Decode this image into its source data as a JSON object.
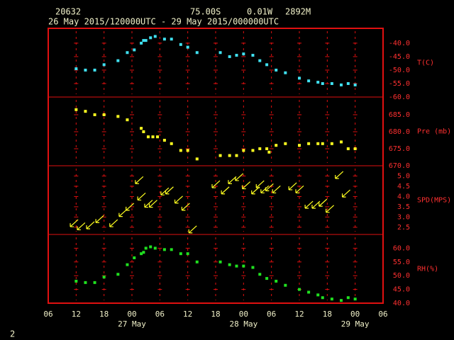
{
  "header": {
    "station": "20632",
    "lat": "75.00S",
    "lon": "0.01W",
    "elev": "2892M",
    "period": "26 May 2015/120000UTC - 29 May 2015/000000UTC",
    "footer": "2"
  },
  "chart_data": [
    {
      "type": "scatter",
      "ylabel": "T(C)",
      "color": "#40e0f0",
      "x": [
        12,
        14,
        16,
        18,
        21,
        23,
        24.5,
        26,
        26.5,
        27,
        28,
        29,
        31,
        32.5,
        34.5,
        36,
        38,
        43,
        45,
        46.5,
        48,
        50,
        51.5,
        53,
        55,
        57,
        60,
        62,
        64,
        65,
        67,
        69,
        70.5,
        72
      ],
      "values": [
        -49.5,
        -50,
        -50,
        -48,
        -46.5,
        -43.5,
        -42.5,
        -40,
        -39,
        -39,
        -38,
        -37.5,
        -38.5,
        -38.5,
        -40.5,
        -41.5,
        -43.5,
        -43.5,
        -45,
        -44.5,
        -44,
        -44.5,
        -46.5,
        -48,
        -50,
        -51,
        -53,
        -54,
        -54.5,
        -55,
        -55,
        -55.5,
        -55,
        -55.5
      ],
      "ylim": [
        -60,
        -34.5
      ],
      "yticks": [
        {
          "value": -40,
          "label": "-40.0"
        },
        {
          "value": -45,
          "label": "-45.0"
        },
        {
          "value": -50,
          "label": "-50.0"
        },
        {
          "value": -55,
          "label": "-55.0"
        },
        {
          "value": -60,
          "label": "-60.0"
        }
      ]
    },
    {
      "type": "scatter",
      "ylabel": "Pre (mb)",
      "color": "#ffff20",
      "x": [
        12,
        14,
        16,
        18,
        21,
        23,
        26,
        26.5,
        27.5,
        28.5,
        29.5,
        31,
        32.5,
        34.5,
        36,
        38,
        43,
        45,
        46.5,
        48,
        50,
        51.5,
        53,
        53.5,
        55,
        57,
        60,
        62,
        64,
        65,
        67,
        69,
        70.5,
        72
      ],
      "values": [
        686.5,
        686,
        685,
        685,
        684.5,
        683.5,
        681,
        680,
        678.5,
        678.5,
        678.5,
        677.5,
        676.5,
        674.5,
        674.5,
        672,
        673,
        673,
        673,
        674.5,
        674.5,
        675,
        675,
        674,
        676,
        676.5,
        676,
        676.5,
        676.5,
        676.5,
        676.5,
        677,
        675,
        675
      ],
      "ylim": [
        670,
        690.2
      ],
      "yticks": [
        {
          "value": 685,
          "label": "685.0"
        },
        {
          "value": 680,
          "label": "680.0"
        },
        {
          "value": 675,
          "label": "675.0"
        },
        {
          "value": 670,
          "label": "670.0"
        }
      ]
    },
    {
      "type": "vector",
      "ylabel": "SPD(MPS)",
      "color": "#ffff20",
      "x": [
        11.5,
        13,
        15,
        17,
        20,
        22,
        23.5,
        25.5,
        26,
        27.5,
        28.5,
        31,
        32,
        34,
        35.5,
        37,
        42,
        44,
        45.5,
        47,
        48.5,
        50.5,
        51.5,
        52.5,
        53.5,
        55,
        58.5,
        60,
        62,
        63.5,
        65,
        66.5,
        68.5,
        70
      ],
      "values": [
        2.7,
        2.55,
        2.6,
        2.9,
        2.7,
        3.2,
        3.5,
        4.8,
        4.0,
        3.65,
        3.65,
        4.25,
        4.3,
        3.85,
        3.5,
        2.4,
        4.6,
        4.3,
        4.8,
        4.95,
        4.55,
        4.3,
        4.6,
        4.35,
        4.45,
        4.35,
        4.5,
        4.35,
        3.6,
        3.6,
        3.7,
        3.4,
        5.05,
        4.15
      ],
      "ylim": [
        2.15,
        5.5
      ],
      "yticks": [
        {
          "value": 5,
          "label": "5.0"
        },
        {
          "value": 4.5,
          "label": "4.5"
        },
        {
          "value": 4,
          "label": "4.0"
        },
        {
          "value": 3.5,
          "label": "3.5"
        },
        {
          "value": 3,
          "label": "3.0"
        },
        {
          "value": 2.5,
          "label": "2.5"
        }
      ]
    },
    {
      "type": "scatter",
      "ylabel": "RH(%)",
      "color": "#20e020",
      "x": [
        12,
        14,
        16,
        18,
        21,
        23,
        24.5,
        26,
        26.5,
        27,
        28,
        29,
        31,
        32.5,
        34.5,
        36,
        38,
        43,
        45,
        46.5,
        48,
        50,
        51.5,
        53,
        55,
        57,
        60,
        62,
        64,
        65,
        67,
        69,
        70.5,
        72
      ],
      "values": [
        48,
        47.5,
        47.5,
        49.5,
        50.5,
        54,
        56.5,
        58,
        58.5,
        60,
        60.5,
        60,
        59.5,
        59.5,
        58,
        58,
        55,
        55,
        54,
        53.5,
        53.5,
        53,
        50.5,
        49,
        48,
        46.5,
        45,
        44,
        43,
        42,
        41.5,
        41,
        42,
        41.5
      ],
      "ylim": [
        40,
        65
      ],
      "yticks": [
        {
          "value": 60,
          "label": "60.0"
        },
        {
          "value": 55,
          "label": "55.0"
        },
        {
          "value": 50,
          "label": "50.0"
        },
        {
          "value": 45,
          "label": "45.0"
        },
        {
          "value": 40,
          "label": "40.0"
        }
      ],
      "xlim": [
        6,
        78
      ],
      "xticks": [
        {
          "value": 6,
          "label": "06"
        },
        {
          "value": 12,
          "label": "12"
        },
        {
          "value": 18,
          "label": "18"
        },
        {
          "value": 24,
          "label": "00"
        },
        {
          "value": 30,
          "label": "06"
        },
        {
          "value": 36,
          "label": "12"
        },
        {
          "value": 42,
          "label": "18"
        },
        {
          "value": 48,
          "label": "00"
        },
        {
          "value": 54,
          "label": "06"
        },
        {
          "value": 60,
          "label": "12"
        },
        {
          "value": 66,
          "label": "18"
        },
        {
          "value": 72,
          "label": "00"
        },
        {
          "value": 78,
          "label": "06"
        }
      ],
      "date_labels": [
        {
          "value": 24,
          "label": "27 May"
        },
        {
          "value": 48,
          "label": "28 May"
        },
        {
          "value": 72,
          "label": "29 May"
        }
      ]
    }
  ]
}
